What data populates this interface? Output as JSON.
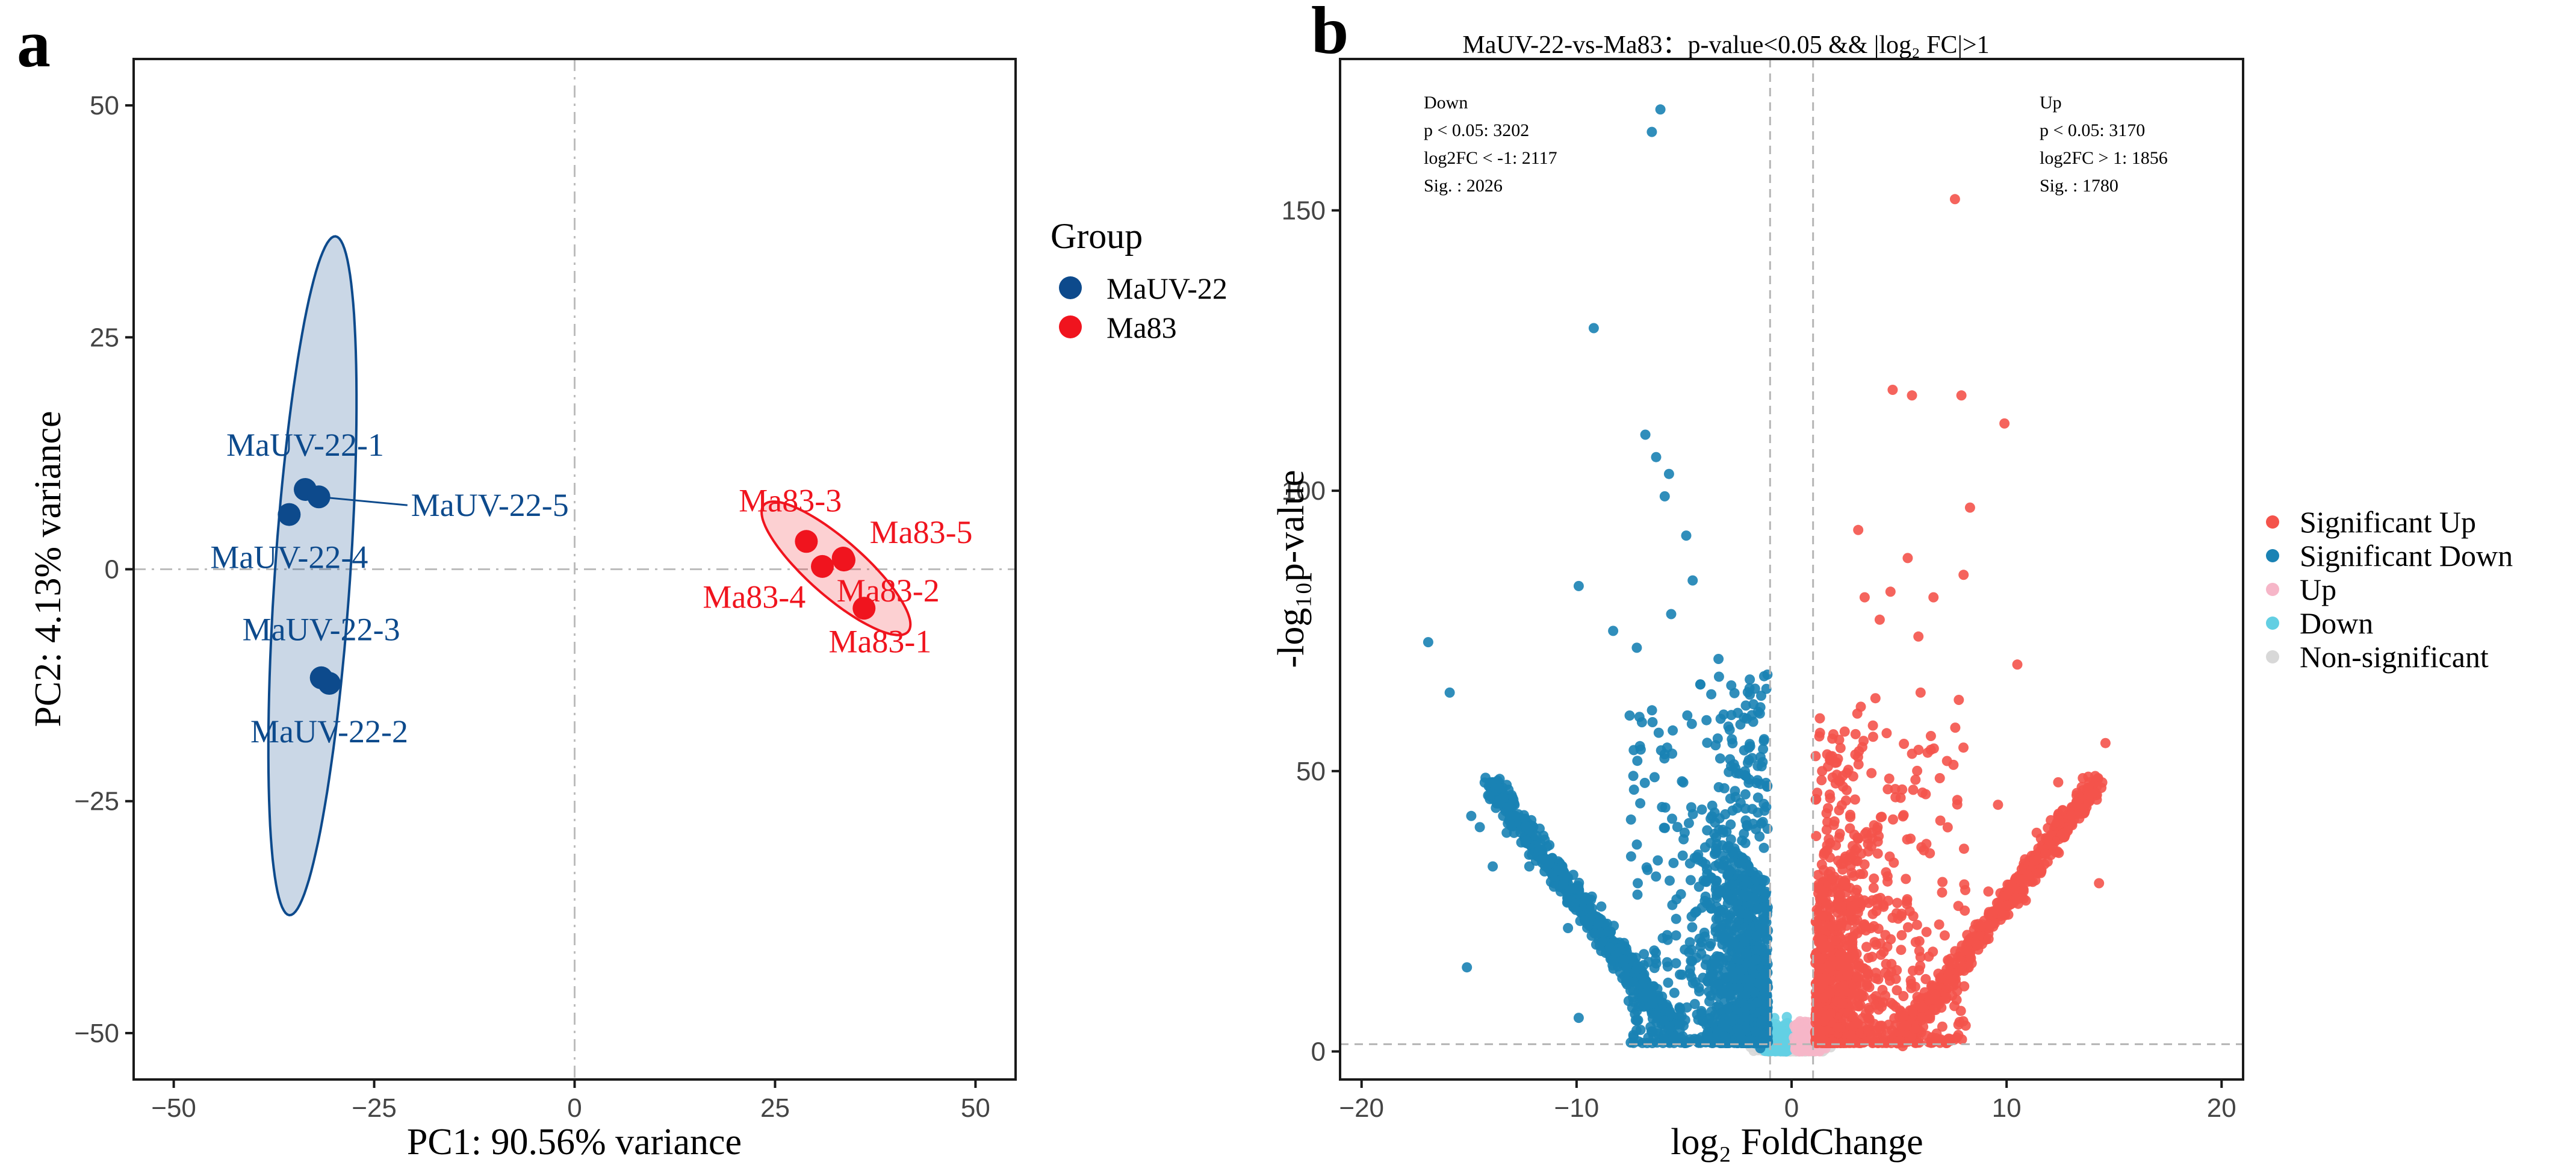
{
  "panel_a_letter": "a",
  "panel_b_letter": "b",
  "colors": {
    "maUV22": "#0d4a8c",
    "ma83": "#f0141e",
    "sig_up": "#f4534b",
    "sig_down": "#1a82b4",
    "up": "#f6b6c8",
    "down": "#63cfe3",
    "ns": "#d8d8d8"
  },
  "chart_data": [
    {
      "type": "scatter",
      "name": "PCA",
      "xlabel": "PC1: 90.56% variance",
      "ylabel": "PC2: 4.13% variance",
      "xlim": [
        -55,
        55
      ],
      "ylim": [
        -55,
        55
      ],
      "xticks": [
        -50,
        -25,
        0,
        25,
        50
      ],
      "yticks": [
        -50,
        -25,
        0,
        25,
        50
      ],
      "xtick_labels": [
        "−50",
        "−25",
        "0",
        "25",
        "50"
      ],
      "ytick_labels": [
        "−50",
        "−25",
        "0",
        "25",
        "50"
      ],
      "legend_title": "Group",
      "series": [
        {
          "name": "MaUV-22",
          "color": "#0d4a8c",
          "points": [
            {
              "label": "MaUV-22-1",
              "x": -33.6,
              "y": 8.6
            },
            {
              "label": "MaUV-22-2",
              "x": -30.6,
              "y": -12.3
            },
            {
              "label": "MaUV-22-3",
              "x": -31.6,
              "y": -11.7
            },
            {
              "label": "MaUV-22-4",
              "x": -35.6,
              "y": 5.9
            },
            {
              "label": "MaUV-22-5",
              "x": -31.9,
              "y": 7.8
            }
          ],
          "ellipse": {
            "cx": -32.7,
            "cy": -0.7,
            "semi_major": 36.7,
            "semi_minor": 4.7,
            "angle_deg": 85.5
          }
        },
        {
          "name": "Ma83",
          "color": "#f0141e",
          "points": [
            {
              "label": "Ma83-1",
              "x": 36.1,
              "y": -4.2
            },
            {
              "label": "Ma83-2",
              "x": 33.6,
              "y": 1.0
            },
            {
              "label": "Ma83-3",
              "x": 28.9,
              "y": 3.0
            },
            {
              "label": "Ma83-4",
              "x": 30.9,
              "y": 0.3
            },
            {
              "label": "Ma83-5",
              "x": 33.5,
              "y": 1.2
            }
          ],
          "ellipse": {
            "cx": 32.6,
            "cy": 0.1,
            "semi_major": 11.3,
            "semi_minor": 3.2,
            "angle_deg": -36.5
          }
        }
      ]
    },
    {
      "type": "scatter",
      "name": "Volcano",
      "title": "MaUV-22-vs-Ma83：p-value<0.05 && |log₂ FC|>1",
      "xlabel": "log₂ FoldChange",
      "ylabel": "-log₁₀p-value",
      "xlim": [
        -21,
        21
      ],
      "ylim": [
        -5,
        177
      ],
      "xticks": [
        -20,
        -10,
        0,
        10,
        20
      ],
      "yticks": [
        0,
        50,
        100,
        150
      ],
      "xtick_labels": [
        "−20",
        "−10",
        "0",
        "10",
        "20"
      ],
      "ytick_labels": [
        "0",
        "50",
        "100",
        "150"
      ],
      "thresholds": {
        "log2fc": [
          -1,
          1
        ],
        "neglog10p": 1.3
      },
      "annotations": {
        "down": [
          "Down",
          "p < 0.05: 3202",
          "log2FC < -1: 2117",
          "Sig. : 2026"
        ],
        "up": [
          "Up",
          "p < 0.05: 3170",
          "log2FC > 1: 1856",
          "Sig. : 1780"
        ]
      },
      "legend": [
        {
          "label": "Significant Up",
          "color": "#f4534b"
        },
        {
          "label": "Significant Down",
          "color": "#1a82b4"
        },
        {
          "label": "Up",
          "color": "#f6b6c8"
        },
        {
          "label": "Down",
          "color": "#63cfe3"
        },
        {
          "label": "Non-significant",
          "color": "#d8d8d8"
        }
      ],
      "counts": {
        "sig_up": 1780,
        "sig_down": 2026
      },
      "outliers_down": [
        [
          -6.5,
          164
        ],
        [
          -6.1,
          168
        ],
        [
          -9.2,
          129
        ],
        [
          -6.8,
          110
        ],
        [
          -6.3,
          106
        ],
        [
          -5.7,
          103
        ],
        [
          -5.9,
          99
        ],
        [
          -4.9,
          92
        ],
        [
          -9.9,
          83
        ],
        [
          -8.3,
          75
        ],
        [
          -5.6,
          78
        ],
        [
          -4.6,
          84
        ],
        [
          -16.9,
          73
        ],
        [
          -15.9,
          64
        ],
        [
          -13.9,
          48
        ],
        [
          -14.5,
          40
        ],
        [
          -13.9,
          33
        ],
        [
          -15.1,
          15
        ],
        [
          -9.9,
          6
        ],
        [
          -14.9,
          42
        ],
        [
          -13.6,
          47
        ],
        [
          -12.2,
          33
        ],
        [
          -10.4,
          22
        ],
        [
          -7.2,
          72
        ],
        [
          -3.4,
          70
        ],
        [
          -2.8,
          60
        ]
      ],
      "outliers_up": [
        [
          7.6,
          152
        ],
        [
          4.7,
          118
        ],
        [
          5.6,
          117
        ],
        [
          7.9,
          117
        ],
        [
          9.9,
          112
        ],
        [
          8.3,
          97
        ],
        [
          3.1,
          93
        ],
        [
          5.4,
          88
        ],
        [
          8.0,
          85
        ],
        [
          4.6,
          82
        ],
        [
          6.6,
          81
        ],
        [
          3.4,
          81
        ],
        [
          4.1,
          77
        ],
        [
          5.9,
          74
        ],
        [
          10.5,
          69
        ],
        [
          14.6,
          55
        ],
        [
          11.9,
          38
        ],
        [
          12.4,
          48
        ],
        [
          12.6,
          43
        ],
        [
          9.6,
          44
        ],
        [
          14.3,
          30
        ],
        [
          6.0,
          64
        ],
        [
          3.9,
          63
        ],
        [
          10.0,
          26
        ],
        [
          13.8,
          49
        ],
        [
          11.4,
          39
        ]
      ],
      "arm_down": {
        "start": [
          -14.0,
          48
        ],
        "end": [
          -5.5,
          4
        ]
      },
      "arm_up": {
        "start": [
          5.0,
          2
        ],
        "end": [
          14.2,
          48
        ]
      }
    }
  ]
}
